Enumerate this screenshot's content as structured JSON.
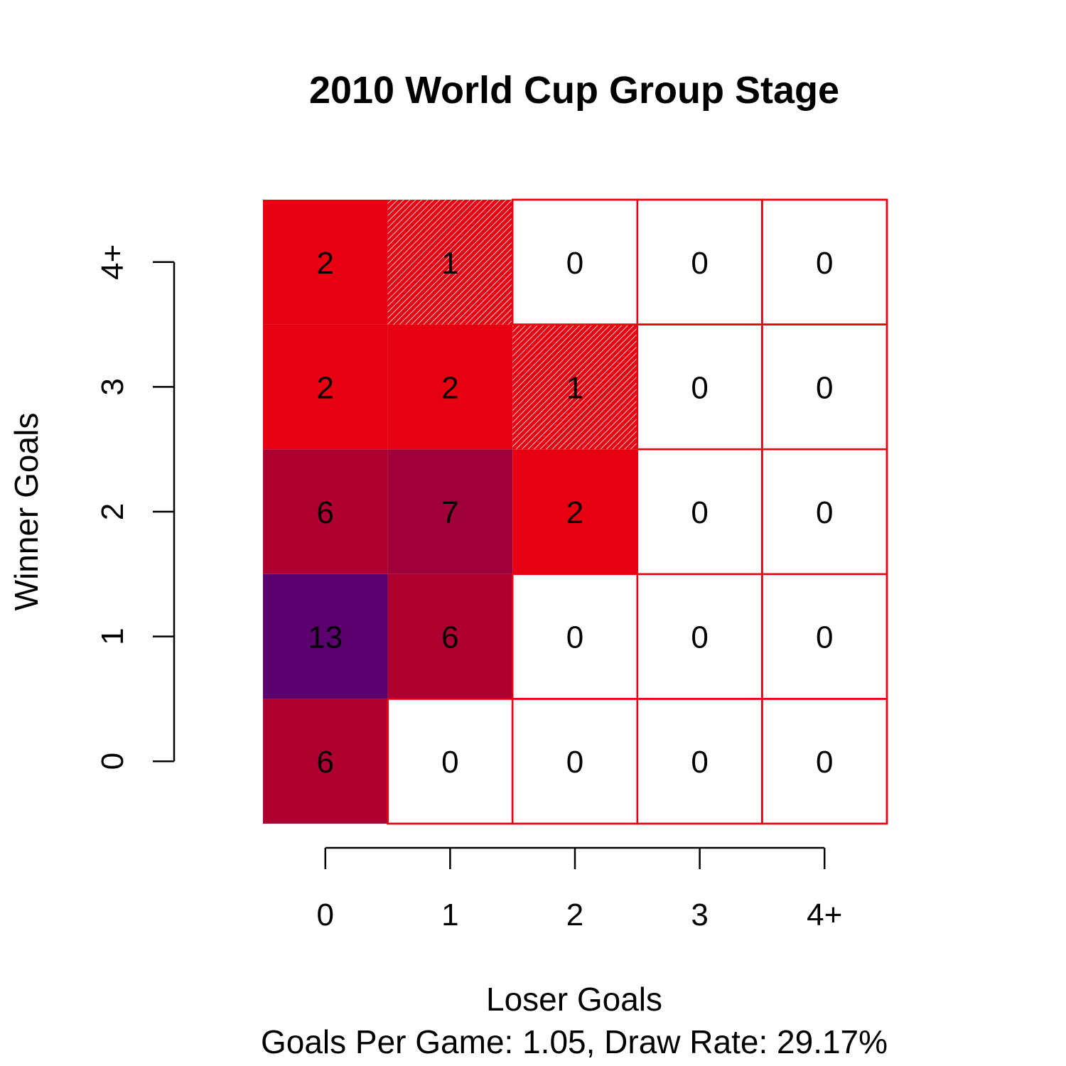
{
  "chart_data": {
    "type": "heatmap",
    "title": "2010 World Cup Group Stage",
    "xlabel": "Loser Goals",
    "ylabel": "Winner Goals",
    "subtitle": "Goals Per Game: 1.05, Draw Rate: 29.17%",
    "x_categories": [
      "0",
      "1",
      "2",
      "3",
      "4+"
    ],
    "y_categories": [
      "0",
      "1",
      "2",
      "3",
      "4+"
    ],
    "values": [
      [
        6,
        0,
        0,
        0,
        0
      ],
      [
        13,
        6,
        0,
        0,
        0
      ],
      [
        6,
        7,
        2,
        0,
        0
      ],
      [
        2,
        2,
        1,
        0,
        0
      ],
      [
        2,
        1,
        0,
        0,
        0
      ]
    ],
    "colors": {
      "count_1": "#e60012",
      "count_2": "#e60012",
      "count_6": "#ad0030",
      "count_7": "#a0003a",
      "count_13": "#5c0070",
      "grid_line": "#e60012",
      "background": "#ffffff"
    },
    "hatched_counts": [
      1
    ]
  }
}
